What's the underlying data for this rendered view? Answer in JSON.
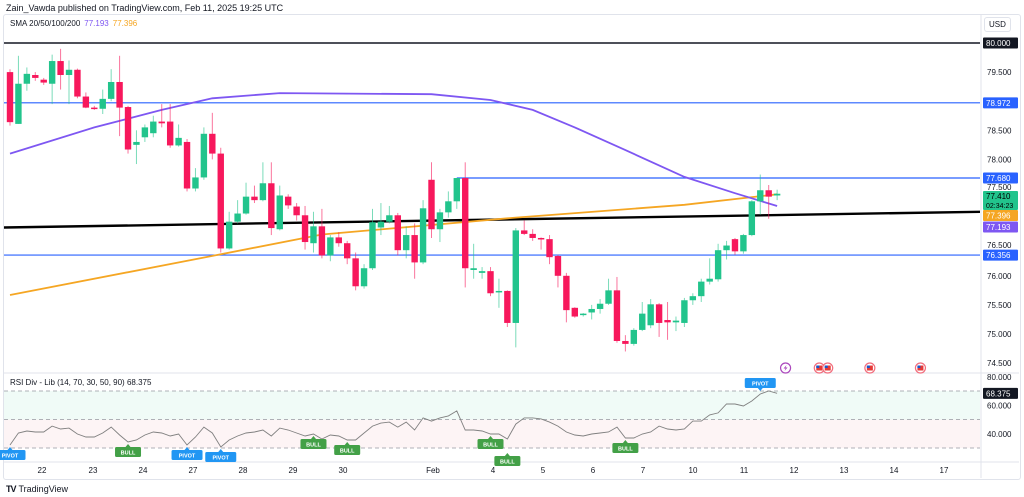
{
  "attribution": "Zain_Vawda published on TradingView.com, Feb 11, 2025 19:25 UTC",
  "legend": {
    "label": "SMA 20/50/100/200",
    "value_purple": "77.193",
    "value_orange": "77.396"
  },
  "rsi_legend": {
    "label": "RSI Div - Lib (14, 70, 30, 50, 90)",
    "value": "68.375"
  },
  "currency": "USD",
  "footer": {
    "logo_text": "TradingView"
  },
  "colors": {
    "up": "#22c48c",
    "down": "#f7185c",
    "sma_purple": "#7e57f2",
    "sma_orange": "#f5a623",
    "level_blue": "#2962ff",
    "trend_black": "#000000",
    "rsi_line": "#808080",
    "pivot": "#2196f3",
    "bull": "#43a047",
    "countdown": "#22c48c"
  },
  "chart_data": [
    {
      "type": "candlestick",
      "title": "",
      "ylim": [
        74.3,
        80.5
      ],
      "grid": false,
      "price_ticks": [
        "79.500",
        "78.500",
        "78.000",
        "77.500",
        "76.500",
        "76.000",
        "75.500",
        "75.000",
        "74.500"
      ],
      "time_ticks": [
        "22",
        "23",
        "24",
        "27",
        "28",
        "29",
        "30",
        "Feb",
        "4",
        "5",
        "6",
        "7",
        "10",
        "11",
        "12",
        "13",
        "14",
        "17"
      ],
      "ohlc": [
        [
          79.5,
          79.55,
          78.58,
          78.64
        ],
        [
          78.61,
          79.78,
          78.61,
          79.3
        ],
        [
          79.3,
          79.58,
          79.18,
          79.47
        ],
        [
          79.45,
          79.5,
          79.35,
          79.4
        ],
        [
          79.37,
          79.4,
          79.28,
          79.32
        ],
        [
          79.3,
          79.8,
          78.95,
          79.69
        ],
        [
          79.69,
          79.9,
          79.2,
          79.45
        ],
        [
          79.45,
          79.7,
          78.95,
          79.54
        ],
        [
          79.54,
          79.56,
          79.05,
          79.08
        ],
        [
          79.08,
          79.15,
          78.88,
          78.89
        ],
        [
          78.89,
          78.92,
          78.85,
          78.87
        ],
        [
          78.87,
          79.2,
          78.78,
          79.04
        ],
        [
          79.04,
          79.55,
          79.0,
          79.33
        ],
        [
          79.33,
          79.78,
          78.4,
          78.89
        ],
        [
          78.9,
          78.92,
          78.1,
          78.17
        ],
        [
          78.25,
          78.5,
          77.92,
          78.3
        ],
        [
          78.38,
          78.6,
          78.3,
          78.55
        ],
        [
          78.45,
          78.75,
          78.38,
          78.65
        ],
        [
          78.65,
          78.95,
          78.55,
          78.62
        ],
        [
          78.65,
          78.95,
          78.2,
          78.24
        ],
        [
          78.24,
          78.6,
          78.22,
          78.37
        ],
        [
          78.3,
          78.35,
          77.45,
          77.5
        ],
        [
          77.5,
          77.85,
          77.45,
          77.69
        ],
        [
          77.69,
          78.55,
          77.65,
          78.44
        ],
        [
          78.44,
          78.8,
          78.0,
          78.1
        ],
        [
          78.1,
          78.2,
          76.4,
          76.47
        ],
        [
          76.47,
          77.1,
          76.45,
          76.93
        ],
        [
          76.93,
          77.3,
          76.9,
          77.07
        ],
        [
          77.07,
          77.6,
          77.05,
          77.36
        ],
        [
          77.36,
          77.55,
          77.25,
          77.3
        ],
        [
          77.3,
          77.95,
          77.28,
          77.59
        ],
        [
          77.59,
          77.95,
          76.7,
          76.82
        ],
        [
          76.8,
          77.55,
          76.78,
          77.38
        ],
        [
          77.36,
          77.4,
          77.15,
          77.21
        ],
        [
          77.19,
          77.25,
          76.95,
          77.04
        ],
        [
          77.04,
          77.2,
          76.45,
          76.58
        ],
        [
          76.56,
          77.1,
          76.4,
          76.85
        ],
        [
          76.85,
          77.15,
          76.3,
          76.35
        ],
        [
          76.35,
          76.7,
          76.25,
          76.66
        ],
        [
          76.66,
          76.75,
          76.5,
          76.56
        ],
        [
          76.56,
          76.6,
          76.2,
          76.3
        ],
        [
          76.3,
          76.4,
          75.75,
          75.82
        ],
        [
          75.82,
          76.2,
          75.78,
          76.13
        ],
        [
          76.13,
          77.15,
          76.1,
          76.92
        ],
        [
          76.83,
          77.25,
          76.7,
          76.93
        ],
        [
          76.93,
          77.2,
          76.9,
          77.04
        ],
        [
          77.04,
          77.08,
          76.35,
          76.44
        ],
        [
          76.44,
          76.85,
          76.3,
          76.7
        ],
        [
          76.7,
          76.9,
          75.95,
          76.23
        ],
        [
          76.23,
          77.3,
          76.2,
          77.16
        ],
        [
          77.65,
          77.95,
          76.65,
          76.8
        ],
        [
          76.8,
          77.15,
          76.58,
          77.09
        ],
        [
          77.09,
          77.45,
          77.0,
          77.28
        ],
        [
          77.28,
          77.68,
          77.15,
          77.68
        ],
        [
          77.68,
          77.95,
          75.8,
          76.13
        ],
        [
          76.1,
          76.55,
          75.95,
          76.13
        ],
        [
          76.05,
          76.15,
          75.95,
          76.08
        ],
        [
          76.08,
          76.15,
          75.65,
          75.7
        ],
        [
          75.72,
          75.95,
          75.45,
          75.74
        ],
        [
          75.74,
          75.75,
          75.12,
          75.19
        ],
        [
          75.19,
          76.82,
          74.77,
          76.78
        ],
        [
          76.78,
          76.95,
          76.7,
          76.72
        ],
        [
          76.72,
          76.8,
          76.6,
          76.65
        ],
        [
          76.65,
          76.66,
          76.45,
          76.63
        ],
        [
          76.63,
          76.7,
          76.2,
          76.32
        ],
        [
          76.34,
          76.36,
          75.8,
          76.0
        ],
        [
          76.0,
          76.05,
          75.2,
          75.41
        ],
        [
          75.45,
          75.46,
          75.28,
          75.3
        ],
        [
          75.33,
          75.36,
          75.3,
          75.35
        ],
        [
          75.37,
          75.5,
          75.25,
          75.43
        ],
        [
          75.43,
          75.6,
          75.35,
          75.52
        ],
        [
          75.52,
          75.95,
          75.5,
          75.75
        ],
        [
          75.75,
          75.98,
          74.85,
          74.88
        ],
        [
          74.88,
          74.98,
          74.7,
          74.83
        ],
        [
          74.83,
          75.1,
          74.8,
          75.07
        ],
        [
          75.07,
          75.55,
          75.05,
          75.35
        ],
        [
          75.15,
          75.6,
          75.1,
          75.51
        ],
        [
          75.51,
          75.53,
          74.95,
          75.19
        ],
        [
          75.24,
          75.55,
          74.9,
          75.2
        ],
        [
          75.2,
          75.3,
          75.05,
          75.23
        ],
        [
          75.19,
          75.62,
          75.12,
          75.58
        ],
        [
          75.58,
          75.7,
          75.5,
          75.65
        ],
        [
          75.65,
          75.95,
          75.55,
          75.9
        ],
        [
          75.9,
          76.3,
          75.85,
          75.95
        ],
        [
          75.94,
          76.55,
          75.9,
          76.44
        ],
        [
          76.44,
          76.6,
          76.28,
          76.52
        ],
        [
          76.63,
          76.65,
          76.36,
          76.42
        ],
        [
          76.42,
          76.72,
          76.38,
          76.7
        ],
        [
          76.7,
          77.3,
          76.68,
          77.28
        ],
        [
          77.28,
          77.74,
          77.05,
          77.47
        ],
        [
          77.47,
          77.56,
          76.98,
          77.36
        ],
        [
          77.38,
          77.48,
          77.3,
          77.41
        ]
      ],
      "sma_purple": [
        [
          0,
          78.1
        ],
        [
          10,
          78.55
        ],
        [
          18,
          78.85
        ],
        [
          24,
          79.05
        ],
        [
          32,
          79.14
        ],
        [
          50,
          79.12
        ],
        [
          57,
          79.02
        ],
        [
          62,
          78.85
        ],
        [
          67,
          78.55
        ],
        [
          73,
          78.16
        ],
        [
          80,
          77.7
        ],
        [
          86,
          77.42
        ],
        [
          91,
          77.2
        ]
      ],
      "sma_orange": [
        [
          0,
          75.67
        ],
        [
          25,
          76.37
        ],
        [
          37,
          76.71
        ],
        [
          60,
          77.0
        ],
        [
          80,
          77.22
        ],
        [
          91,
          77.4
        ]
      ],
      "horizontal_levels": [
        {
          "price": 80.0,
          "label": "80.000",
          "color": "#131722",
          "from_index": null
        },
        {
          "price": 78.972,
          "label": "78.972",
          "color": "#2962ff",
          "from_index": null
        },
        {
          "price": 77.68,
          "label": "77.680",
          "color": "#2962ff",
          "from_index": 53
        },
        {
          "price": 76.356,
          "label": "76.356",
          "color": "#2962ff",
          "from_index": null
        }
      ],
      "trendline": {
        "start_price": 76.83,
        "end_price": 77.1
      },
      "last_price": {
        "label": "77.410",
        "countdown": "02:34:23"
      },
      "sma_labels": {
        "orange": "77.396",
        "purple": "77.193"
      },
      "events": [
        {
          "index": 92,
          "icon": "lightning-icon"
        },
        {
          "index": 96,
          "icon": "us-flag-icon"
        },
        {
          "index": 97,
          "icon": "us-flag-icon"
        },
        {
          "index": 102,
          "icon": "us-flag-icon"
        },
        {
          "index": 108,
          "icon": "us-flag-icon"
        }
      ]
    },
    {
      "type": "line",
      "title": "RSI Div - Lib (14, 70, 30, 50, 90)",
      "ylim": [
        25,
        82
      ],
      "levels": [
        70,
        50,
        30
      ],
      "tick_labels": [
        "80.000",
        "60.000",
        "40.000"
      ],
      "current_label": "68.375",
      "values": [
        32.1,
        40.5,
        41.9,
        41.2,
        41.2,
        45.4,
        43.3,
        44.0,
        39.8,
        37.7,
        37.7,
        40.5,
        44.7,
        39.1,
        34.2,
        35.6,
        39.1,
        41.2,
        40.5,
        38.4,
        39.8,
        32.1,
        37.7,
        44.7,
        40.5,
        30.7,
        35.6,
        38.4,
        40.5,
        41.2,
        42.6,
        38.4,
        44.0,
        42.6,
        40.5,
        38.4,
        39.8,
        36.3,
        39.1,
        38.4,
        35.6,
        35.6,
        40.5,
        45.4,
        47.5,
        48.2,
        44.7,
        48.2,
        42.6,
        51.1,
        48.9,
        51.1,
        52.5,
        56.0,
        42.6,
        42.6,
        41.9,
        39.8,
        39.8,
        36.3,
        46.8,
        51.1,
        51.1,
        50.4,
        48.2,
        45.4,
        41.2,
        39.1,
        38.4,
        39.8,
        40.5,
        41.2,
        44.7,
        37.0,
        37.0,
        39.8,
        41.2,
        45.4,
        43.3,
        42.6,
        43.3,
        48.9,
        48.9,
        53.2,
        54.6,
        60.9,
        60.9,
        59.5,
        63.0,
        67.9,
        70.0,
        68.375
      ],
      "signals": [
        {
          "index": 0,
          "label": "PIVOT",
          "kind": "pivot",
          "pos": "below"
        },
        {
          "index": 14,
          "label": "BULL",
          "kind": "bull",
          "pos": "below"
        },
        {
          "index": 21,
          "label": "PIVOT",
          "kind": "pivot",
          "pos": "below"
        },
        {
          "index": 25,
          "label": "PIVOT",
          "kind": "pivot",
          "pos": "below"
        },
        {
          "index": 36,
          "label": "BULL",
          "kind": "bull",
          "pos": "below"
        },
        {
          "index": 40,
          "label": "BULL",
          "kind": "bull",
          "pos": "below"
        },
        {
          "index": 57,
          "label": "BULL",
          "kind": "bull",
          "pos": "below"
        },
        {
          "index": 59,
          "label": "BULL",
          "kind": "bull",
          "pos": "below"
        },
        {
          "index": 73,
          "label": "BULL",
          "kind": "bull",
          "pos": "below"
        },
        {
          "index": 89,
          "label": "PIVOT",
          "kind": "pivot",
          "pos": "above"
        }
      ]
    }
  ]
}
